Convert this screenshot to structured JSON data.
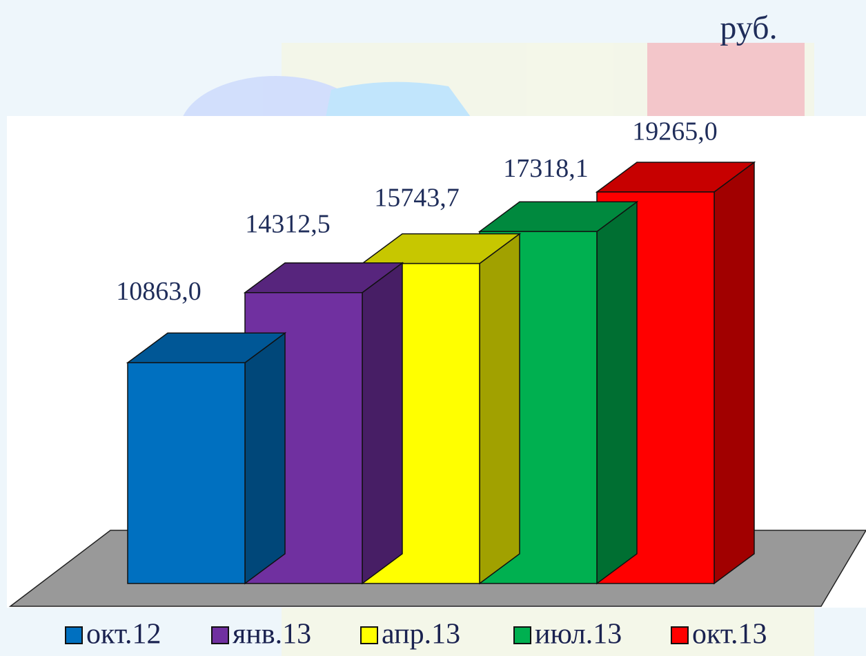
{
  "chart_data": {
    "type": "bar3d",
    "unit": "руб.",
    "categories": [
      "окт.12",
      "янв.13",
      "апр.13",
      "июл.13",
      "окт.13"
    ],
    "values": [
      10863.0,
      14312.5,
      15743.7,
      17318.1,
      19265.0
    ],
    "value_labels": [
      "10863,0",
      "14312,5",
      "15743,7",
      "17318,1",
      "19265,0"
    ],
    "colors": [
      "#0070c0",
      "#7030a0",
      "#ffff00",
      "#00b050",
      "#ff0000"
    ]
  }
}
